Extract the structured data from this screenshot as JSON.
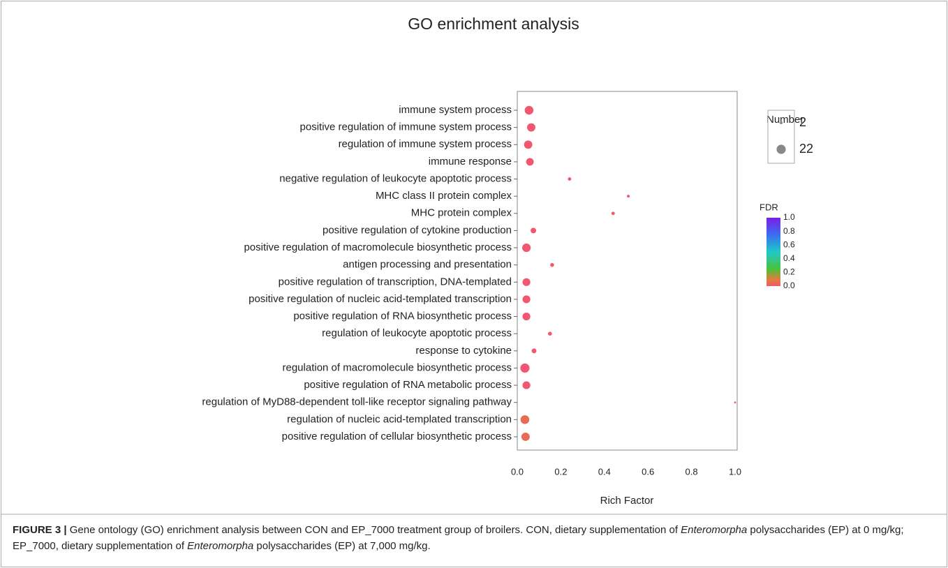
{
  "chart_data": {
    "type": "bubble",
    "title": "GO enrichment analysis",
    "x_label": "Rich Factor",
    "categories": [
      "immune system process",
      "positive regulation of immune system process",
      "regulation of immune system process",
      "immune response",
      "negative regulation of leukocyte apoptotic process",
      "MHC class II protein complex",
      "MHC protein complex",
      "positive regulation of cytokine production",
      "positive regulation of macromolecule biosynthetic process",
      "antigen processing and presentation",
      "positive regulation of transcription, DNA-templated",
      "positive regulation of nucleic acid-templated transcription",
      "positive regulation of RNA biosynthetic process",
      "regulation of leukocyte apoptotic process",
      "response to cytokine",
      "regulation of macromolecule biosynthetic process",
      "positive regulation of RNA metabolic process",
      "regulation of MyD88-dependent toll-like receptor signaling pathway",
      "regulation of nucleic acid-templated transcription",
      "positive regulation of cellular biosynthetic process"
    ],
    "rich_factor": [
      0.054,
      0.064,
      0.05,
      0.058,
      0.24,
      0.51,
      0.44,
      0.074,
      0.042,
      0.16,
      0.042,
      0.042,
      0.042,
      0.15,
      0.077,
      0.035,
      0.042,
      1.0,
      0.035,
      0.038
    ],
    "number": [
      20,
      18,
      18,
      15,
      3,
      2,
      3,
      8,
      19,
      4,
      16,
      16,
      16,
      4,
      6,
      22,
      16,
      1,
      20,
      18
    ],
    "fdr": [
      0.0,
      0.0,
      0.0,
      0.0,
      0.0,
      0.0,
      0.0,
      0.0,
      0.0,
      0.0,
      0.0,
      0.0,
      0.0,
      0.0,
      0.0,
      0.0,
      0.0,
      0.03,
      0.05,
      0.05
    ],
    "xlim": [
      0,
      1.0
    ],
    "xticks": [
      {
        "value": 0,
        "label": "0.0"
      },
      0.2,
      0.4,
      0.6,
      0.8,
      {
        "value": 1,
        "label": "1.0"
      }
    ],
    "size_legend": {
      "title": "Number",
      "values": [
        2,
        22
      ],
      "color": "#888888"
    },
    "color_legend": {
      "title": "FDR",
      "lim": [
        0,
        1.0
      ],
      "ticks": [
        {
          "value": 0,
          "label": "0.0"
        },
        0.2,
        0.4,
        0.6,
        0.8,
        {
          "value": 1,
          "label": "1.0"
        }
      ],
      "colorscale": [
        [
          0,
          "#f2576f"
        ],
        [
          0.1,
          "#de7f3c"
        ],
        [
          0.25,
          "#4ac23a"
        ],
        [
          0.5,
          "#1fc9c9"
        ],
        [
          0.75,
          "#3a6ef0"
        ],
        [
          1,
          "#7a1ee8"
        ]
      ]
    },
    "grid": false
  },
  "caption": {
    "label": "FIGURE 3 |",
    "segments": [
      {
        "text": " Gene ontology (GO) enrichment analysis between CON and EP_7000 treatment group of broilers. CON, dietary supplementation of "
      },
      {
        "text": "Enteromorpha",
        "style": "italic"
      },
      {
        "text": " polysaccharides (EP) at 0 mg/kg; EP_7000, dietary supplementation of "
      },
      {
        "text": "Enteromorpha",
        "style": "italic"
      },
      {
        "text": " polysaccharides (EP) at 7,000 mg/kg."
      }
    ]
  }
}
